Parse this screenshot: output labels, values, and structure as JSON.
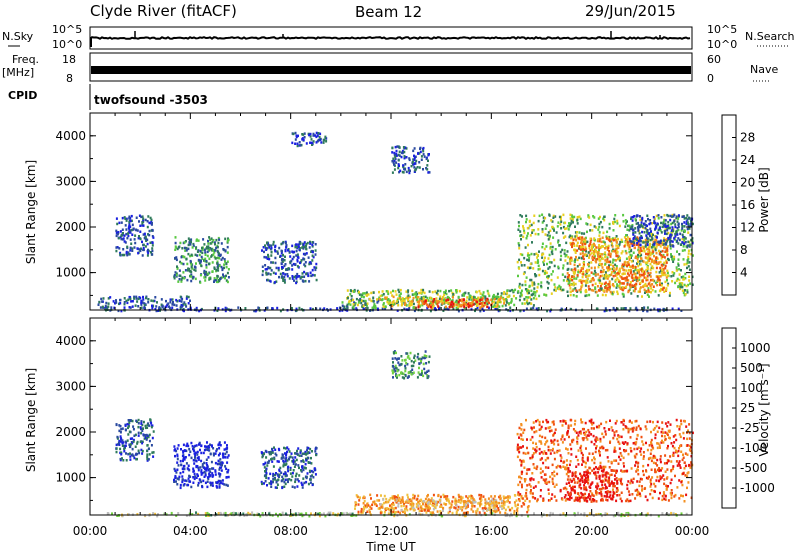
{
  "header": {
    "station": "Clyde River (fitACF)",
    "beam": "Beam 12",
    "date": "29/Jun/2015"
  },
  "top_panels": {
    "nsky_label": "N.Sky",
    "nsky_ticks": [
      "10^5",
      "10^0"
    ],
    "nsearch_label": "N.Search",
    "nsearch_ticks": [
      "10^5",
      "10^0"
    ],
    "freq_label": "Freq.",
    "freq_unit": "[MHz]",
    "freq_ticks": [
      "18",
      "8"
    ],
    "nave_label": "Nave",
    "nave_ticks": [
      "60",
      "0"
    ],
    "cpid_label": "CPID",
    "cpid_value": "twofsound -3503"
  },
  "axes": {
    "xlabel": "Time UT",
    "xticks": [
      "00:00",
      "04:00",
      "08:00",
      "12:00",
      "16:00",
      "20:00",
      "00:00"
    ],
    "ylabel": "Slant Range [km]",
    "yticks": [
      "1000",
      "2000",
      "3000",
      "4000"
    ]
  },
  "colors": {
    "power": [
      "#1a20e0",
      "#2a4aa0",
      "#2e7a5a",
      "#58c840",
      "#e8d020",
      "#f29020",
      "#f05010",
      "#e81010"
    ],
    "velocity": [
      "#e81010",
      "#f05010",
      "#f49020",
      "#f0c040",
      "#bcbcbc",
      "#70d040",
      "#2e7a5a",
      "#2a4aa0",
      "#1a20e0"
    ]
  },
  "chart_data": [
    {
      "type": "heatmap",
      "name": "power",
      "colorbar_label": "Power [dB]",
      "colorbar_ticks": [
        "4",
        "8",
        "12",
        "16",
        "20",
        "24",
        "28"
      ],
      "x_range_hours": [
        0,
        24
      ],
      "y_range_km": [
        180,
        4500
      ],
      "blobs": [
        {
          "t": [
            0.5,
            23.8
          ],
          "r": [
            180,
            260
          ],
          "level": 1
        },
        {
          "t": [
            0.3,
            4.0
          ],
          "r": [
            250,
            500
          ],
          "level": 1
        },
        {
          "t": [
            10.0,
            11.5
          ],
          "r": [
            250,
            450
          ],
          "level": 2
        },
        {
          "t": [
            10.2,
            17.8
          ],
          "r": [
            300,
            650
          ],
          "level": 3
        },
        {
          "t": [
            11.5,
            16.5
          ],
          "r": [
            250,
            500
          ],
          "level": 4
        },
        {
          "t": [
            13.0,
            16.0
          ],
          "r": [
            250,
            450
          ],
          "level": 6
        },
        {
          "t": [
            3.3,
            5.5
          ],
          "r": [
            800,
            1800
          ],
          "level": 2
        },
        {
          "t": [
            6.8,
            9.0
          ],
          "r": [
            800,
            1700
          ],
          "level": 1
        },
        {
          "t": [
            1.0,
            2.5
          ],
          "r": [
            1400,
            2300
          ],
          "level": 1
        },
        {
          "t": [
            17.0,
            24.0
          ],
          "r": [
            500,
            2300
          ],
          "level": 3
        },
        {
          "t": [
            19.0,
            23.0
          ],
          "r": [
            600,
            1800
          ],
          "level": 5
        },
        {
          "t": [
            21.5,
            24.0
          ],
          "r": [
            1600,
            2300
          ],
          "level": 1
        },
        {
          "t": [
            12.0,
            13.5
          ],
          "r": [
            3200,
            3800
          ],
          "level": 1
        },
        {
          "t": [
            8.0,
            9.5
          ],
          "r": [
            3800,
            4100
          ],
          "level": 1
        }
      ]
    },
    {
      "type": "heatmap",
      "name": "velocity",
      "colorbar_label": "Velocity [m s⁻¹]",
      "colorbar_ticks": [
        "-1000",
        "-500",
        "-100",
        "-25",
        "25",
        "100",
        "500",
        "1000"
      ],
      "x_range_hours": [
        0,
        24
      ],
      "y_range_km": [
        180,
        4500
      ],
      "blobs": [
        {
          "t": [
            0.5,
            23.8
          ],
          "r": [
            180,
            250
          ],
          "level": 4
        },
        {
          "t": [
            4.0,
            10.5
          ],
          "r": [
            200,
            260
          ],
          "level": 5
        },
        {
          "t": [
            10.5,
            17.5
          ],
          "r": [
            250,
            650
          ],
          "level": 2
        },
        {
          "t": [
            11.5,
            16.5
          ],
          "r": [
            300,
            550
          ],
          "level": 3
        },
        {
          "t": [
            3.3,
            5.5
          ],
          "r": [
            800,
            1800
          ],
          "level": 8
        },
        {
          "t": [
            1.0,
            2.5
          ],
          "r": [
            1400,
            2300
          ],
          "level": 7
        },
        {
          "t": [
            6.8,
            9.0
          ],
          "r": [
            800,
            1700
          ],
          "level": 7
        },
        {
          "t": [
            17.0,
            24.0
          ],
          "r": [
            500,
            2300
          ],
          "level": 1
        },
        {
          "t": [
            19.0,
            21.0
          ],
          "r": [
            500,
            1200
          ],
          "level": 0
        },
        {
          "t": [
            12.0,
            13.5
          ],
          "r": [
            3200,
            3800
          ],
          "level": 6
        }
      ]
    }
  ]
}
